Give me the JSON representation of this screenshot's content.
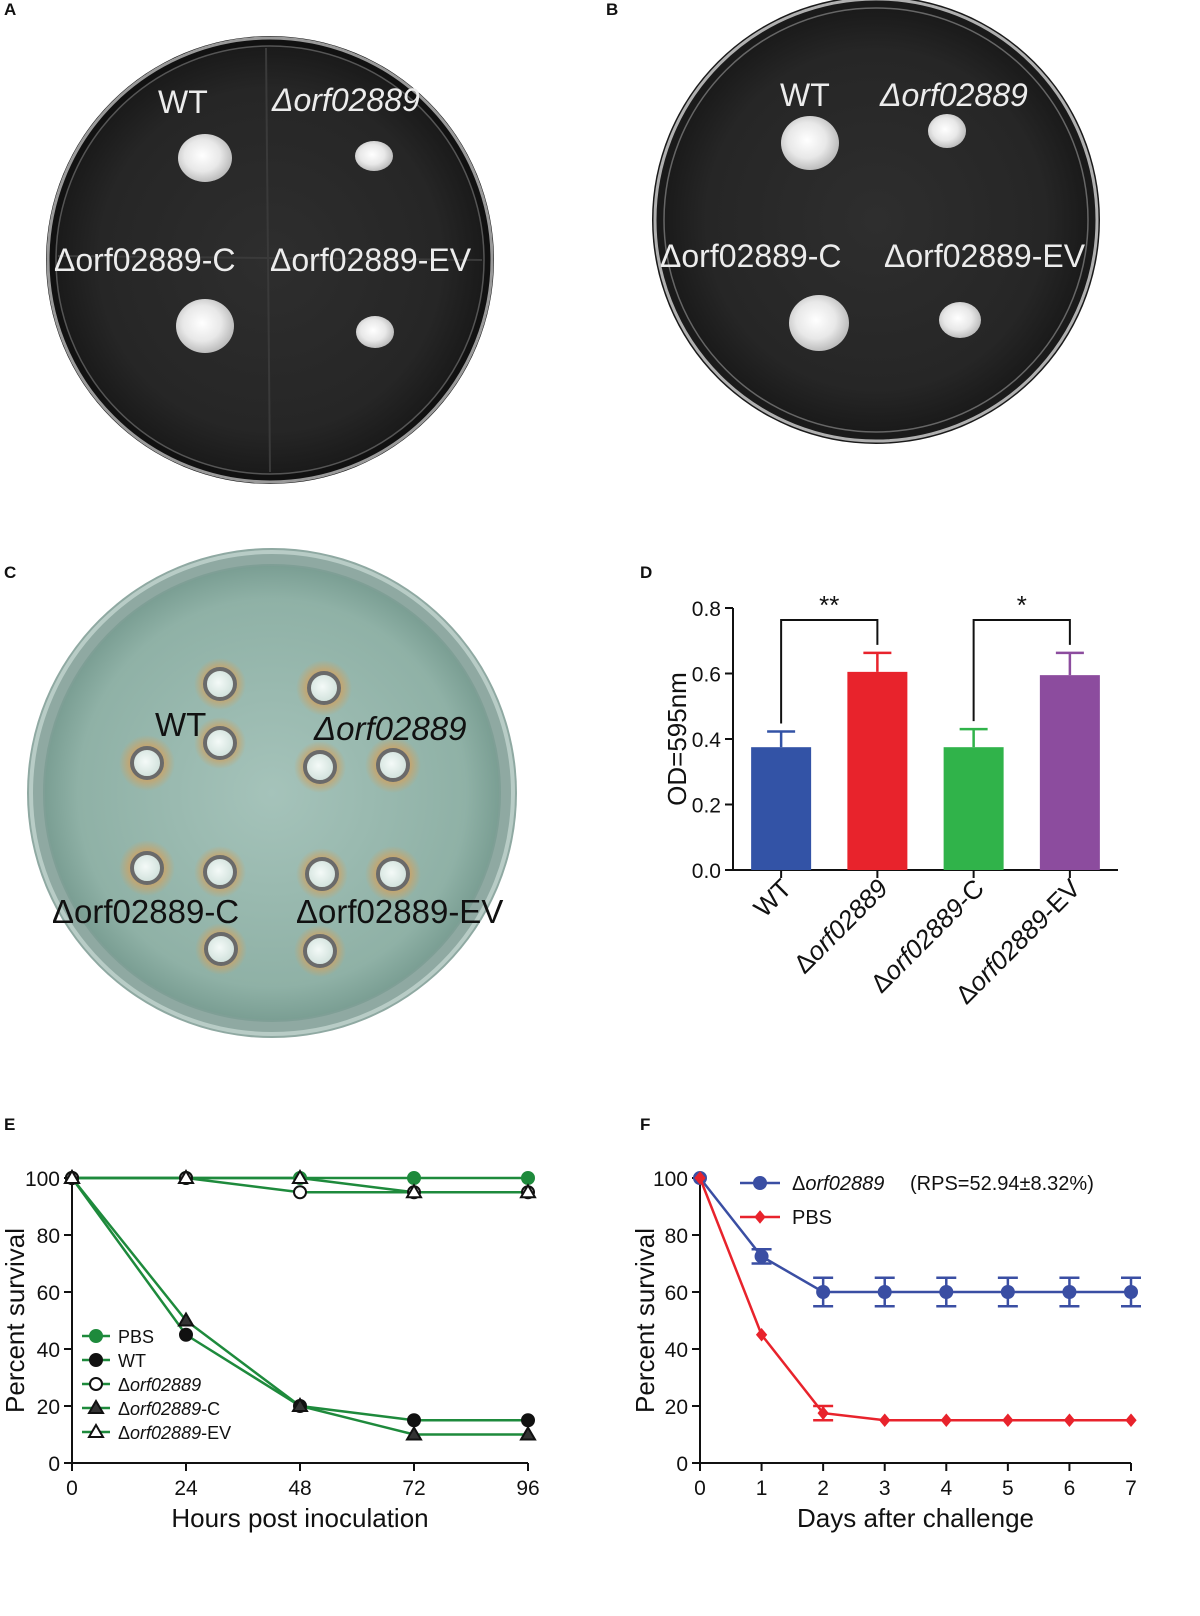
{
  "panels": {
    "A": {
      "letter": "A",
      "labels": {
        "wt": "WT",
        "mutant": "Δorf02889",
        "complement": "Δorf02889-C",
        "empty_vector": "Δorf02889-EV"
      }
    },
    "B": {
      "letter": "B",
      "labels": {
        "wt": "WT",
        "mutant": "Δorf02889",
        "complement": "Δorf02889-C",
        "empty_vector": "Δorf02889-EV"
      }
    },
    "C": {
      "letter": "C",
      "labels": {
        "wt": "WT",
        "mutant": "Δorf02889",
        "complement": "Δorf02889-C",
        "empty_vector": "Δorf02889-EV"
      }
    },
    "D": {
      "letter": "D"
    },
    "E": {
      "letter": "E"
    },
    "F": {
      "letter": "F"
    }
  },
  "chart_data": [
    {
      "panel": "D",
      "type": "bar",
      "categories": [
        "WT",
        "Δorf02889",
        "Δorf02889-C",
        "Δorf02889-EV"
      ],
      "values": [
        0.375,
        0.605,
        0.375,
        0.595
      ],
      "errors": [
        0.048,
        0.058,
        0.055,
        0.068
      ],
      "colors": [
        "#3353a6",
        "#e8232c",
        "#30b34a",
        "#8c4c9e"
      ],
      "ylabel": "OD=595nm",
      "ylim": [
        0,
        0.8
      ],
      "yticks": [
        "0.0",
        "0.2",
        "0.4",
        "0.6",
        "0.8"
      ],
      "significance": [
        {
          "from": "WT",
          "to": "Δorf02889",
          "label": "**"
        },
        {
          "from": "Δorf02889-C",
          "to": "Δorf02889-EV",
          "label": "*"
        }
      ]
    },
    {
      "panel": "E",
      "type": "line",
      "x": [
        0,
        24,
        48,
        72,
        96
      ],
      "xticks": [
        "0",
        "24",
        "48",
        "72",
        "96"
      ],
      "yticks": [
        "0",
        "20",
        "40",
        "60",
        "80",
        "100"
      ],
      "xlabel": "Hours post inoculation",
      "ylabel": "Percent survival",
      "xlim": [
        0,
        96
      ],
      "ylim": [
        0,
        100
      ],
      "color": "#1e8a3c",
      "legend_position": "lower-left",
      "series": [
        {
          "name": "PBS",
          "values": [
            100,
            100,
            100,
            100,
            100
          ],
          "marker": "circle-filled-green"
        },
        {
          "name": "WT",
          "values": [
            100,
            45,
            20,
            15,
            15
          ],
          "marker": "circle-filled-black"
        },
        {
          "name": "Δorf02889",
          "values": [
            100,
            100,
            95,
            95,
            95
          ],
          "marker": "circle-open"
        },
        {
          "name": "Δorf02889-C",
          "values": [
            100,
            50,
            20,
            10,
            10
          ],
          "marker": "triangle-filled"
        },
        {
          "name": "Δorf02889-EV",
          "values": [
            100,
            100,
            100,
            95,
            95
          ],
          "marker": "triangle-open"
        }
      ]
    },
    {
      "panel": "F",
      "type": "line",
      "x": [
        0,
        1,
        2,
        3,
        4,
        5,
        6,
        7
      ],
      "xticks": [
        "0",
        "1",
        "2",
        "3",
        "4",
        "5",
        "6",
        "7"
      ],
      "yticks": [
        "0",
        "20",
        "40",
        "60",
        "80",
        "100"
      ],
      "xlabel": "Days after challenge",
      "ylabel": "Percent survival",
      "xlim": [
        0,
        7
      ],
      "ylim": [
        0,
        100
      ],
      "legend_position": "top-right",
      "series": [
        {
          "name": "Δorf02889",
          "legend_extra": "(RPS=52.94±8.32%)",
          "color": "#3a4ea3",
          "marker": "circle",
          "values": [
            100,
            72.5,
            60,
            60,
            60,
            60,
            60,
            60
          ],
          "errors": [
            0,
            2.5,
            5,
            5,
            5,
            5,
            5,
            5
          ]
        },
        {
          "name": "PBS",
          "color": "#e8232c",
          "marker": "diamond",
          "values": [
            100,
            45,
            17.5,
            15,
            15,
            15,
            15,
            15
          ],
          "errors": [
            0,
            0,
            2.5,
            0,
            0,
            0,
            0,
            0
          ]
        }
      ]
    }
  ]
}
